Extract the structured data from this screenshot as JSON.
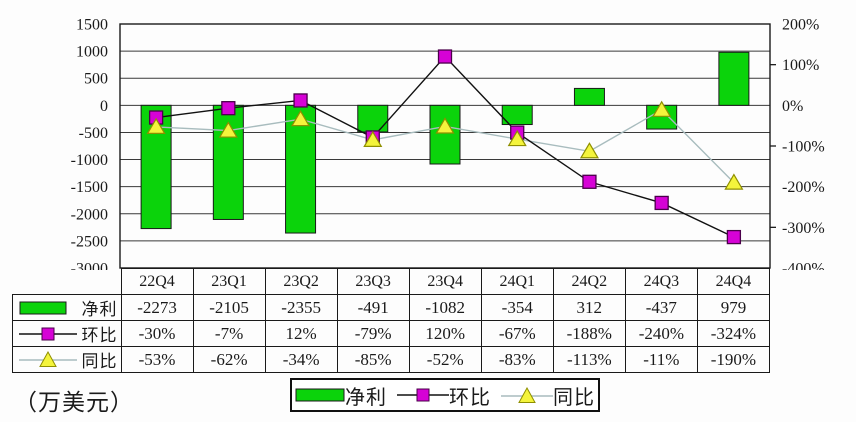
{
  "unit_label": "（万美元）",
  "colors": {
    "bar_fill": "#0bd30b",
    "bar_stroke": "#1a1a1a",
    "qoq_line": "#111111",
    "qoq_marker_fill": "#d602d6",
    "qoq_marker_stroke": "#4a004a",
    "yoy_line": "#a8bcbe",
    "yoy_marker_fill": "#f4f43c",
    "yoy_marker_stroke": "#8f8f00",
    "grid": "#3a3a3a",
    "axis": "#1a1a1a"
  },
  "chart_data": {
    "type": "combo-bar-line",
    "categories": [
      "22Q4",
      "23Q1",
      "23Q2",
      "23Q3",
      "23Q4",
      "24Q1",
      "24Q2",
      "24Q3",
      "24Q4"
    ],
    "series": [
      {
        "key": "net-profit",
        "name": "净利",
        "type": "bar",
        "axis": "left",
        "values": [
          -2273,
          -2105,
          -2355,
          -491,
          -1082,
          -354,
          312,
          -437,
          979
        ]
      },
      {
        "key": "qoq",
        "name": "环比",
        "type": "line",
        "marker": "square",
        "axis": "right",
        "values": [
          -30,
          -7,
          12,
          -79,
          120,
          -67,
          -188,
          -240,
          -324
        ]
      },
      {
        "key": "yoy",
        "name": "同比",
        "type": "line",
        "marker": "triangle",
        "axis": "right",
        "values": [
          -53,
          -62,
          -34,
          -85,
          -52,
          -83,
          -113,
          -11,
          -190
        ]
      }
    ],
    "left_axis": {
      "max": 1500,
      "min": -3000,
      "step": 500,
      "tick_labels": [
        "1500",
        "1000",
        "500",
        "0",
        "-500",
        "-1000",
        "-1500",
        "-2000",
        "-2500",
        "-3000"
      ]
    },
    "right_axis": {
      "max": 200,
      "min": -400,
      "step": 100,
      "tick_labels": [
        "200%",
        "100%",
        "0%",
        "-100%",
        "-200%",
        "-300%",
        "-400%"
      ],
      "minor_tick_values": [
        100,
        -100,
        -300
      ]
    },
    "gridlines": "horizontal",
    "legend_position": "bottom",
    "title": "",
    "xlabel": "",
    "ylabel_left": "万美元",
    "ylabel_right": "%"
  },
  "table": {
    "column_headers": [
      "22Q4",
      "23Q1",
      "23Q2",
      "23Q3",
      "23Q4",
      "24Q1",
      "24Q2",
      "24Q3",
      "24Q4"
    ],
    "rows": [
      {
        "key": "net-profit",
        "label": "净利",
        "values": [
          "-2273",
          "-2105",
          "-2355",
          "-491",
          "-1082",
          "-354",
          "312",
          "-437",
          "979"
        ]
      },
      {
        "key": "qoq",
        "label": "环比",
        "values": [
          "-30%",
          "-7%",
          "12%",
          "-79%",
          "120%",
          "-67%",
          "-188%",
          "-240%",
          "-324%"
        ]
      },
      {
        "key": "yoy",
        "label": "同比",
        "values": [
          "-53%",
          "-62%",
          "-34%",
          "-85%",
          "-52%",
          "-83%",
          "-113%",
          "-11%",
          "-190%"
        ]
      }
    ]
  },
  "legend": {
    "items": [
      {
        "key": "net-profit",
        "label": "净利",
        "marker": "bar"
      },
      {
        "key": "qoq",
        "label": "环比",
        "marker": "square"
      },
      {
        "key": "yoy",
        "label": "同比",
        "marker": "triangle"
      }
    ]
  }
}
